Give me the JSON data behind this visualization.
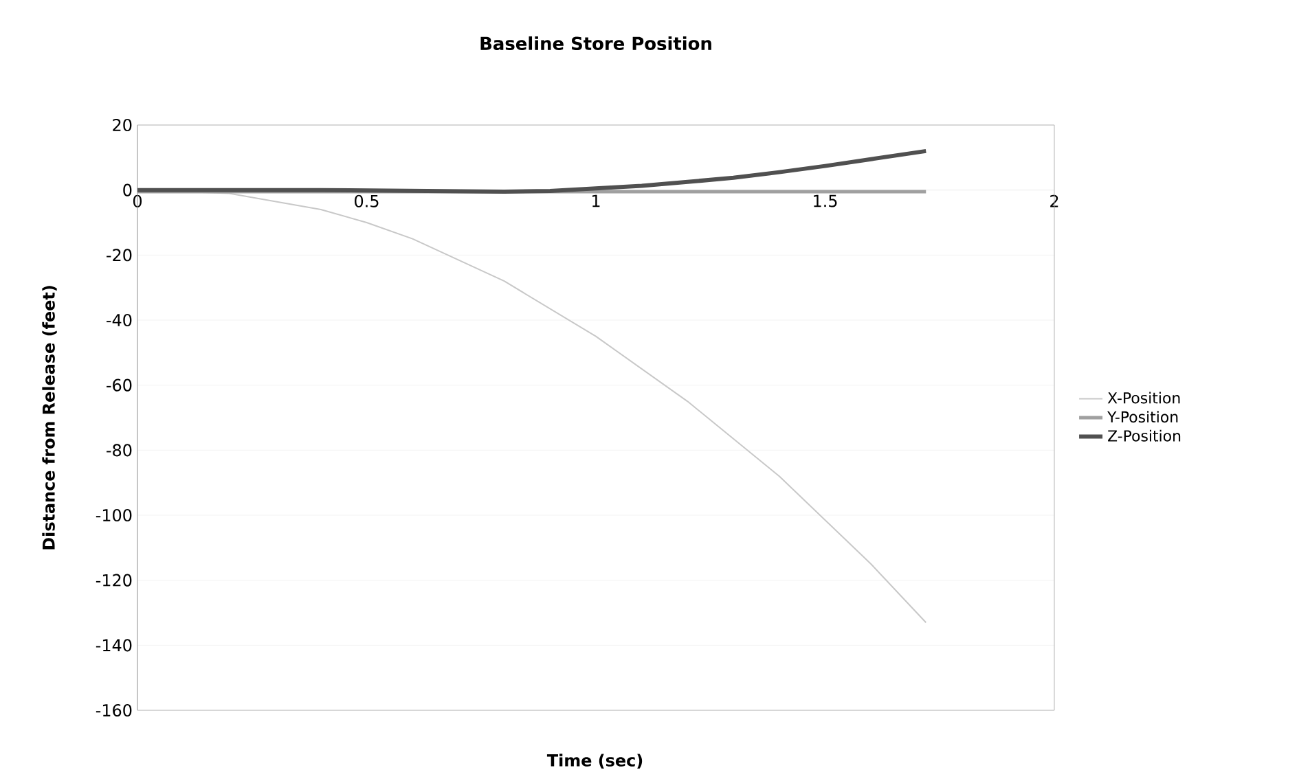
{
  "chart_data": {
    "type": "line",
    "title": "Baseline Store Position",
    "xlabel": "Time (sec)",
    "ylabel": "Distance from Release (feet)",
    "xlim": [
      0,
      2
    ],
    "xticks": [
      0,
      0.5,
      1,
      1.5,
      2
    ],
    "ylim": [
      -160,
      20
    ],
    "yticks": [
      -160,
      -140,
      -120,
      -100,
      -80,
      -60,
      -40,
      -20,
      0,
      20
    ],
    "grid": "y",
    "legend": "right",
    "marker": "none",
    "line_style": "solid",
    "series": [
      {
        "name": "X-Position",
        "color": "#c8c8c8",
        "x": [
          0,
          0.2,
          0.4,
          0.5,
          0.6,
          0.8,
          1.0,
          1.2,
          1.4,
          1.6,
          1.72
        ],
        "values": [
          0,
          -1,
          -6,
          -10,
          -15,
          -28,
          -45,
          -65,
          -88,
          -115,
          -133
        ]
      },
      {
        "name": "Y-Position",
        "color": "#a0a0a0",
        "x": [
          0,
          0.4,
          1.2,
          1.6,
          1.72
        ],
        "values": [
          -0.5,
          -0.5,
          -0.5,
          -0.5,
          -0.5
        ]
      },
      {
        "name": "Z-Position",
        "color": "#505050",
        "x": [
          0,
          0.4,
          0.8,
          0.9,
          1.0,
          1.1,
          1.2,
          1.3,
          1.4,
          1.5,
          1.6,
          1.72
        ],
        "values": [
          0,
          0,
          -0.5,
          -0.3,
          0.5,
          1.3,
          2.5,
          3.8,
          5.5,
          7.4,
          9.5,
          12
        ]
      }
    ]
  }
}
